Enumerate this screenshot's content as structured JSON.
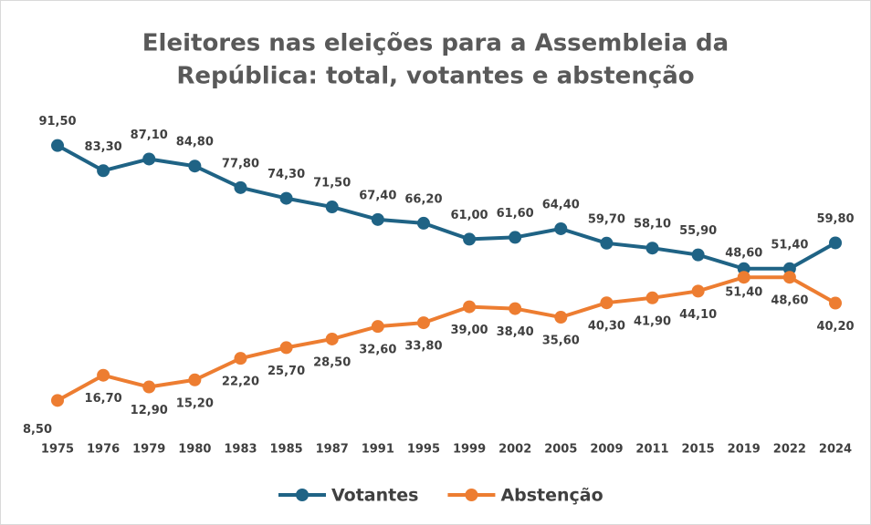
{
  "chart_data": {
    "type": "line",
    "title": [
      "Eleitores nas eleições para a Assembleia da",
      "República: total, votantes e abstenção"
    ],
    "categories": [
      "1975",
      "1976",
      "1979",
      "1980",
      "1983",
      "1985",
      "1987",
      "1991",
      "1995",
      "1999",
      "2002",
      "2005",
      "2009",
      "2011",
      "2015",
      "2019",
      "2022",
      "2024"
    ],
    "series": [
      {
        "name": "Votantes",
        "color": "#1f6385",
        "values": [
          91.5,
          83.3,
          87.1,
          84.8,
          77.8,
          74.3,
          71.5,
          67.4,
          66.2,
          61.0,
          61.6,
          64.4,
          59.7,
          58.1,
          55.9,
          51.4,
          51.4,
          59.8
        ],
        "value_labels": [
          "91,50",
          "83,30",
          "87,10",
          "84,80",
          "77,80",
          "74,30",
          "71,50",
          "67,40",
          "66,20",
          "61,00",
          "61,60",
          "64,40",
          "59,70",
          "58,10",
          "55,90",
          "51,40",
          "51,40",
          "59,80"
        ]
      },
      {
        "name": "Abstenção",
        "color": "#ed7d31",
        "values": [
          8.5,
          16.7,
          12.9,
          15.2,
          22.2,
          25.7,
          28.5,
          32.6,
          33.8,
          39.0,
          38.4,
          35.6,
          40.3,
          41.9,
          44.1,
          48.6,
          48.6,
          40.2
        ],
        "value_labels": [
          "8,50",
          "16,70",
          "12,90",
          "15,20",
          "22,20",
          "25,70",
          "28,50",
          "32,60",
          "33,80",
          "39,00",
          "38,40",
          "35,60",
          "40,30",
          "41,90",
          "44,10",
          "48,60",
          "48,60",
          "40,20"
        ]
      }
    ],
    "legend": "bottom"
  }
}
